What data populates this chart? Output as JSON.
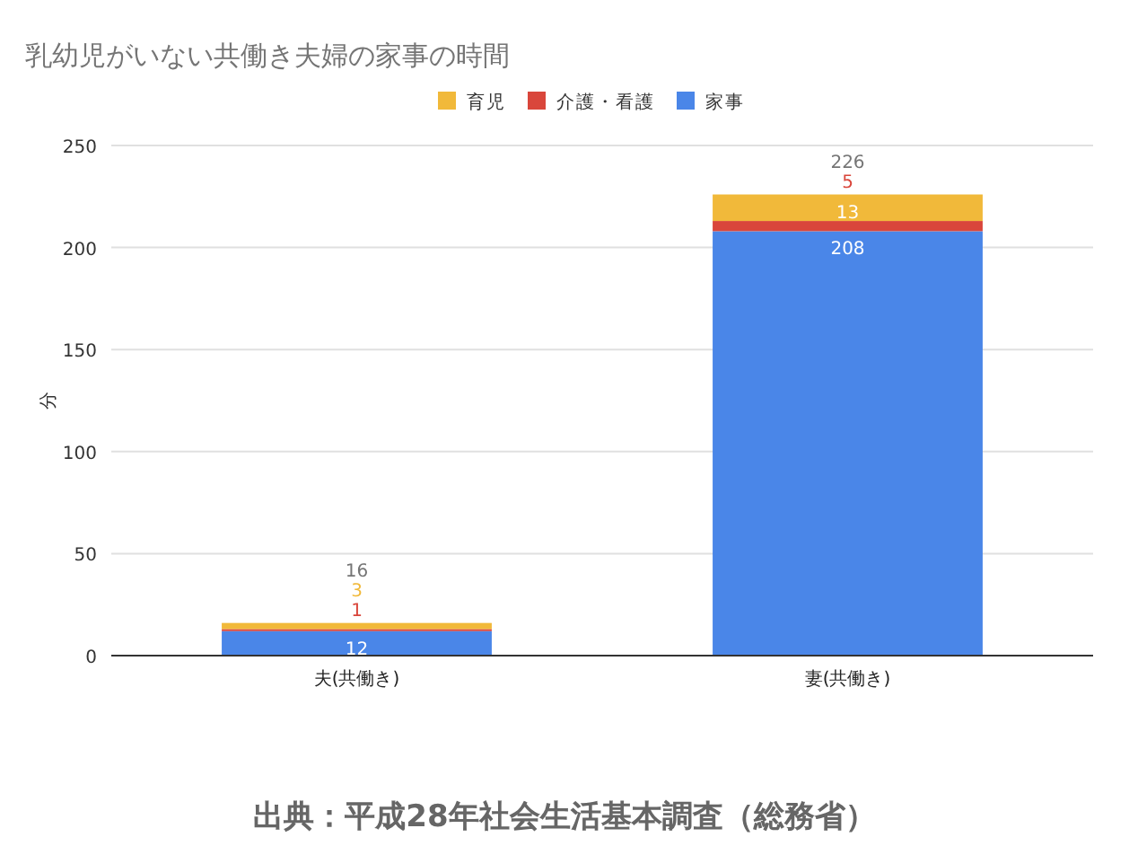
{
  "chart_data": {
    "type": "bar",
    "title": "乳幼児がいない共働き夫婦の家事の時間",
    "ylabel": "分",
    "categories": [
      "夫(共働き)",
      "妻(共働き)"
    ],
    "stacked": true,
    "series": [
      {
        "name": "家事",
        "color": "#4a86e8",
        "values": [
          12,
          208
        ]
      },
      {
        "name": "介護・看護",
        "color": "#d9463b",
        "values": [
          1,
          5
        ]
      },
      {
        "name": "育児",
        "color": "#f1b93a",
        "values": [
          3,
          13
        ]
      }
    ],
    "ylim": [
      0,
      250
    ],
    "yticks": [
      0,
      50,
      100,
      150,
      200,
      250
    ],
    "grid": "y",
    "legend": "top",
    "data_labels": true,
    "totals": [
      "16",
      "226"
    ],
    "annotations": [
      "出典：平成28年社会生活基本調査（総務省）"
    ]
  }
}
